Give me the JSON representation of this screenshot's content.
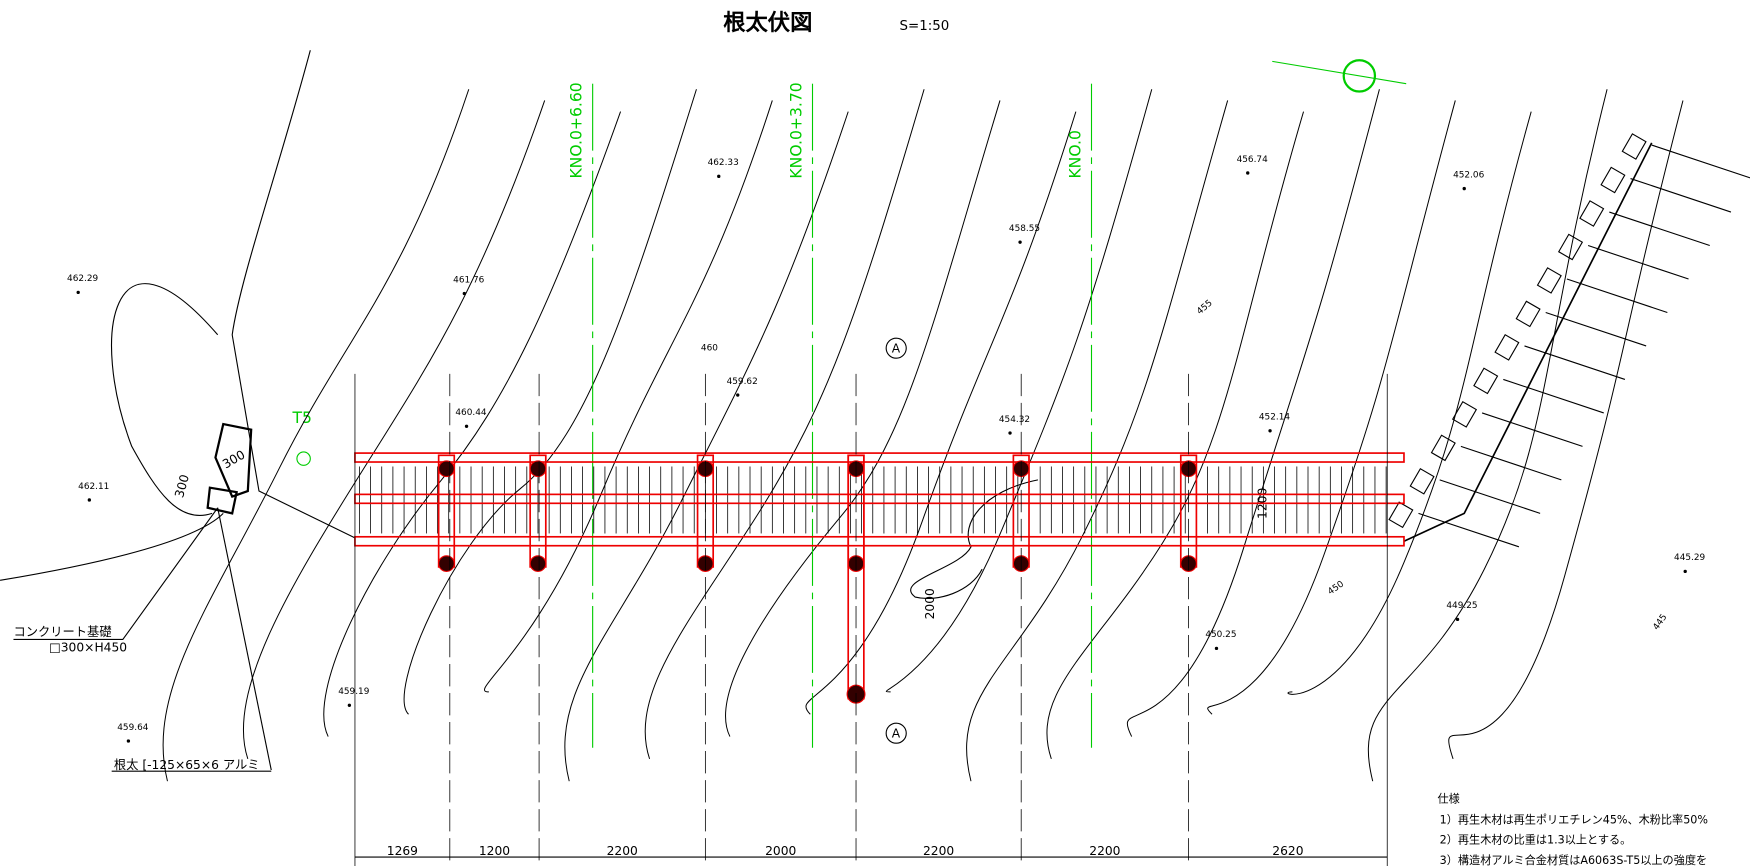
{
  "header": {
    "title": "根太伏図",
    "scale": "S=1:50"
  },
  "stations": [
    "KNO.0+6.60",
    "KNO.0+3.70",
    "KNO.0"
  ],
  "elevations": [
    "462.33",
    "456.74",
    "452.06",
    "458.55",
    "462.29",
    "461.76",
    "455",
    "460",
    "459.62",
    "460.44",
    "454.32",
    "452.14",
    "462.11",
    "445.29",
    "449.25",
    "450.25",
    "450",
    "445",
    "459.19",
    "459.64"
  ],
  "marks": {
    "point": "T5",
    "section": "A",
    "foundation_w": "300",
    "foundation_d": "300",
    "width": "1200",
    "branch": "2000"
  },
  "labels": {
    "foundation": "コンクリート基礎",
    "foundation_size": "□300×H450",
    "joist": "根太 [-125×65×6 アルミ"
  },
  "dimensions": [
    "1269",
    "1200",
    "2200",
    "2000",
    "2200",
    "2200",
    "2620"
  ],
  "notes": {
    "title": "仕様",
    "items": [
      "1）再生木材は再生ポリエチレン45%、木粉比率50%",
      "2）再生木材の比重は1.3以上とする。",
      "3）構造材アルミ合金材質はA6063S-T5以上の強度を"
    ]
  }
}
